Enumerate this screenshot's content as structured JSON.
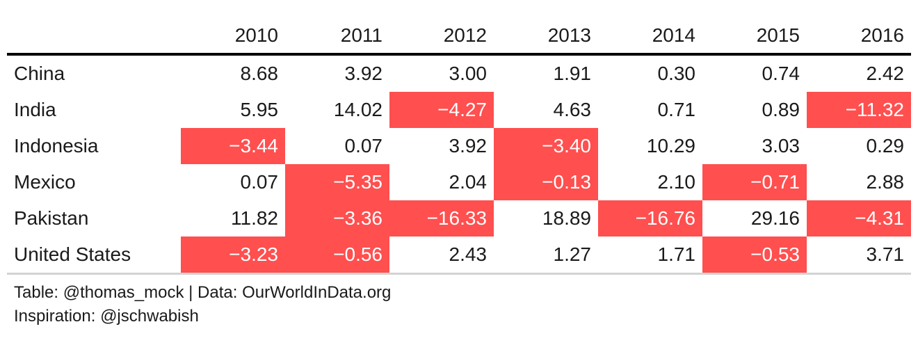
{
  "chart_data": {
    "type": "table",
    "columns": [
      "2010",
      "2011",
      "2012",
      "2013",
      "2014",
      "2015",
      "2016"
    ],
    "rows": [
      {
        "country": "China",
        "values": [
          "8.68",
          "3.92",
          "3.00",
          "1.91",
          "0.30",
          "0.74",
          "2.42"
        ]
      },
      {
        "country": "India",
        "values": [
          "5.95",
          "14.02",
          "−4.27",
          "4.63",
          "0.71",
          "0.89",
          "−11.32"
        ]
      },
      {
        "country": "Indonesia",
        "values": [
          "−3.44",
          "0.07",
          "3.92",
          "−3.40",
          "10.29",
          "3.03",
          "0.29"
        ]
      },
      {
        "country": "Mexico",
        "values": [
          "0.07",
          "−5.35",
          "2.04",
          "−0.13",
          "2.10",
          "−0.71",
          "2.88"
        ]
      },
      {
        "country": "Pakistan",
        "values": [
          "11.82",
          "−3.36",
          "−16.33",
          "18.89",
          "−16.76",
          "29.16",
          "−4.31"
        ]
      },
      {
        "country": "United States",
        "values": [
          "−3.23",
          "−0.56",
          "2.43",
          "1.27",
          "1.71",
          "−0.53",
          "3.71"
        ]
      }
    ],
    "colors": {
      "negative_fill": "#ff4f4f",
      "negative_text": "#ffffff",
      "header_rule": "#000000",
      "bottom_rule": "#d3d3d3"
    }
  },
  "footer": {
    "source_line": "Table: @thomas_mock | Data: OurWorldInData.org",
    "inspiration_line": "Inspiration: @jschwabish"
  }
}
